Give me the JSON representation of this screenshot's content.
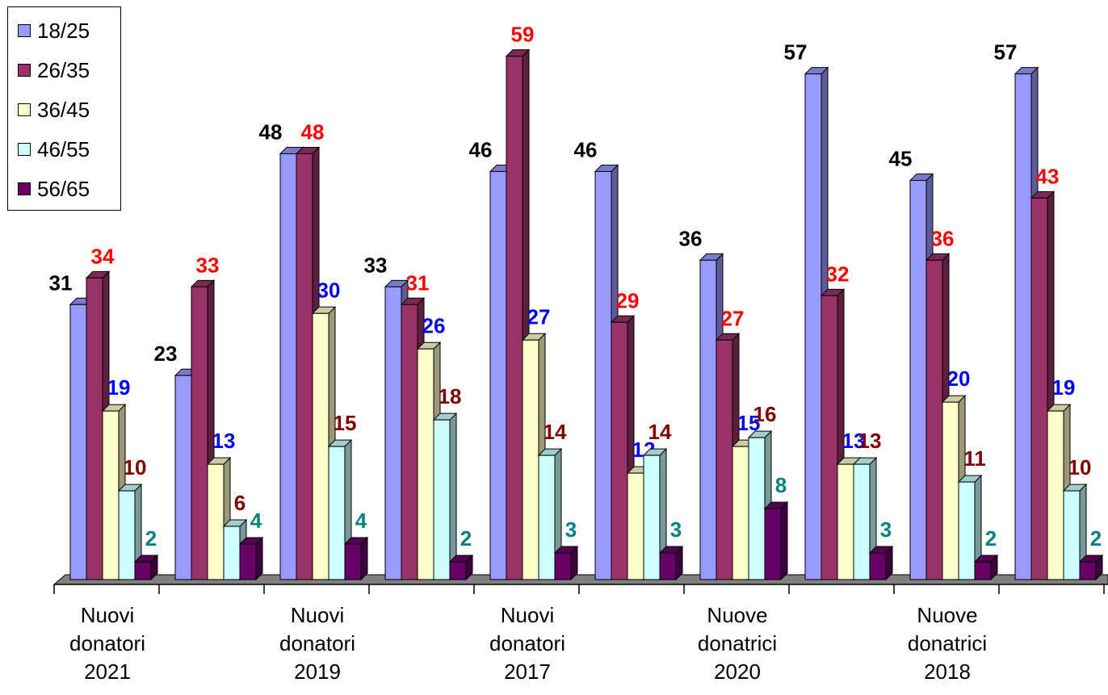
{
  "chart_data": {
    "type": "bar",
    "categories": [
      "Nuovi donatori 2021",
      "",
      "Nuovi donatori 2019",
      "",
      "Nuovi donatori 2017",
      "",
      "Nuove donatrici 2020",
      "",
      "Nuove donatrici 2018",
      ""
    ],
    "category_lines": [
      [
        "Nuovi",
        "donatori",
        "2021"
      ],
      [],
      [
        "Nuovi",
        "donatori",
        "2019"
      ],
      [],
      [
        "Nuovi",
        "donatori",
        "2017"
      ],
      [],
      [
        "Nuove",
        "donatrici",
        "2020"
      ],
      [],
      [
        "Nuove",
        "donatrici",
        "2018"
      ],
      []
    ],
    "series": [
      {
        "name": "18/25",
        "color": "#9999ff",
        "label_color": "#000000",
        "values": [
          31,
          23,
          48,
          33,
          46,
          46,
          36,
          57,
          45,
          57
        ]
      },
      {
        "name": "26/35",
        "color": "#993366",
        "label_color": "#ff0000",
        "values": [
          34,
          33,
          48,
          31,
          59,
          29,
          27,
          32,
          36,
          43
        ]
      },
      {
        "name": "36/45",
        "color": "#ffffcc",
        "label_color": "#0000ff",
        "values": [
          19,
          13,
          30,
          26,
          27,
          12,
          15,
          13,
          20,
          19
        ]
      },
      {
        "name": "46/55",
        "color": "#ccffff",
        "label_color": "#800000",
        "values": [
          10,
          6,
          15,
          18,
          14,
          14,
          16,
          13,
          11,
          10
        ]
      },
      {
        "name": "56/65",
        "color": "#660066",
        "label_color": "#008080",
        "values": [
          2,
          4,
          4,
          2,
          3,
          3,
          8,
          3,
          2,
          2
        ]
      }
    ],
    "ylim": [
      0,
      60
    ],
    "grid": false,
    "legend": "top-left"
  }
}
